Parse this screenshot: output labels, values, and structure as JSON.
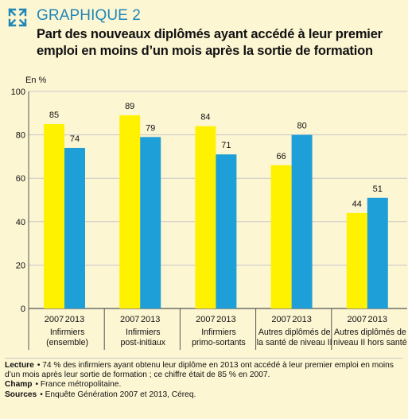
{
  "header": {
    "kicker": "GRAPHIQUE 2",
    "title": "Part des nouveaux diplômés ayant accédé à leur premier emploi en moins d’un mois après la sortie de formation"
  },
  "chart_data": {
    "type": "bar",
    "ylabel": "En %",
    "ylim": [
      0,
      100
    ],
    "yticks": [
      0,
      20,
      40,
      60,
      80,
      100
    ],
    "legend": "none",
    "colors": {
      "2007": "#fff200",
      "2013": "#1f9fd8",
      "grid": "#c8c8c8",
      "axis": "#555555",
      "background": "#fdf6d3"
    },
    "categories": [
      "Infirmiers (ensemble)",
      "Infirmiers post-initiaux",
      "Infirmiers primo-sortants",
      "Autres diplômés de la santé de niveau II",
      "Autres diplômés de niveau II hors santé"
    ],
    "category_lines": [
      [
        "Infirmiers",
        "(ensemble)"
      ],
      [
        "Infirmiers",
        "post-initiaux"
      ],
      [
        "Infirmiers",
        "primo-sortants"
      ],
      [
        "Autres diplômés de",
        "la santé de niveau II"
      ],
      [
        "Autres diplômés de",
        "niveau II hors santé"
      ]
    ],
    "series": [
      {
        "name": "2007",
        "values": [
          85,
          89,
          84,
          66,
          44
        ]
      },
      {
        "name": "2013",
        "values": [
          74,
          79,
          71,
          80,
          51
        ]
      }
    ]
  },
  "notes": {
    "lecture_label": "Lecture",
    "lecture_text": "• 74 % des infirmiers ayant obtenu leur diplôme en 2013 ont accédé à leur premier emploi en moins d’un mois après leur sortie de formation ; ce chiffre était de 85 % en 2007.",
    "champ_label": "Champ",
    "champ_text": "• France métropolitaine.",
    "sources_label": "Sources",
    "sources_text": "• Enquête Génération 2007 et 2013, Céreq."
  }
}
